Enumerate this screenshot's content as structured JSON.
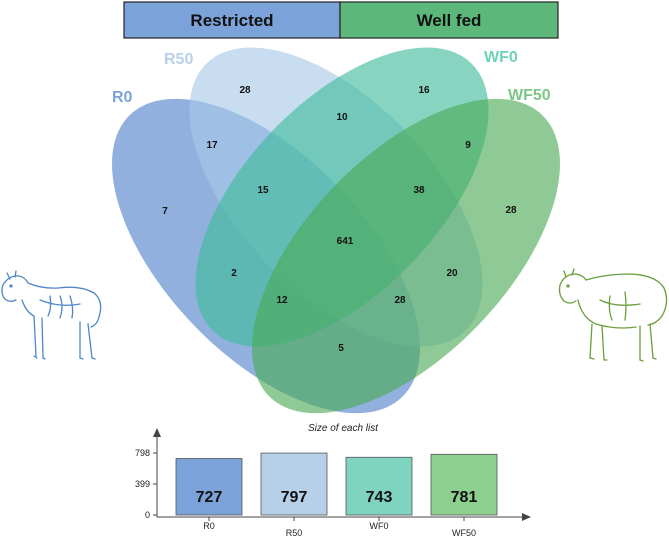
{
  "groups": {
    "restricted": {
      "label": "Restricted",
      "color": "#7ba3d9"
    },
    "well_fed": {
      "label": "Well fed",
      "color": "#5cb87a"
    }
  },
  "sets": [
    {
      "key": "R0",
      "label": "R0",
      "color": "#4f7fc9",
      "label_color": "#7ba3d9"
    },
    {
      "key": "R50",
      "label": "R50",
      "color": "#a8c8e8",
      "label_color": "#b7d0ea"
    },
    {
      "key": "WF0",
      "label": "WF0",
      "color": "#3dbb9a",
      "label_color": "#6fd2b8"
    },
    {
      "key": "WF50",
      "label": "WF50",
      "color": "#4aa956",
      "label_color": "#7cc786"
    }
  ],
  "regions": [
    {
      "sets": [
        "R0"
      ],
      "value": "7"
    },
    {
      "sets": [
        "R50"
      ],
      "value": "28"
    },
    {
      "sets": [
        "WF0"
      ],
      "value": "16"
    },
    {
      "sets": [
        "WF50"
      ],
      "value": "28"
    },
    {
      "sets": [
        "R0",
        "R50"
      ],
      "value": "17"
    },
    {
      "sets": [
        "R50",
        "WF0"
      ],
      "value": "10"
    },
    {
      "sets": [
        "WF0",
        "WF50"
      ],
      "value": "9"
    },
    {
      "sets": [
        "R0",
        "R50",
        "WF0"
      ],
      "value": "15"
    },
    {
      "sets": [
        "R50",
        "WF0",
        "WF50"
      ],
      "value": "38"
    },
    {
      "sets": [
        "R0",
        "R50",
        "WF0",
        "WF50"
      ],
      "value": "641"
    },
    {
      "sets": [
        "R0",
        "WF0"
      ],
      "value": "2"
    },
    {
      "sets": [
        "R50",
        "WF50"
      ],
      "value": "20"
    },
    {
      "sets": [
        "R0",
        "WF0",
        "WF50"
      ],
      "value": "12"
    },
    {
      "sets": [
        "R0",
        "R50",
        "WF50"
      ],
      "value": "28"
    },
    {
      "sets": [
        "R0",
        "WF50"
      ],
      "value": "5"
    }
  ],
  "icons": [
    "thin-sheep-icon",
    "fat-sheep-icon"
  ],
  "chart_data": {
    "type": "bar",
    "title": "Size of each list",
    "categories": [
      "R0",
      "R50",
      "WF0",
      "WF50"
    ],
    "values": [
      727,
      797,
      743,
      781
    ],
    "value_labels": [
      "727",
      "797",
      "743",
      "781"
    ],
    "yticks": [
      "798",
      "399",
      "0"
    ],
    "ylim": [
      0,
      798
    ],
    "colors": [
      "#7ba3d9",
      "#b7d0ea",
      "#7fd4c0",
      "#8ccf8f"
    ]
  }
}
